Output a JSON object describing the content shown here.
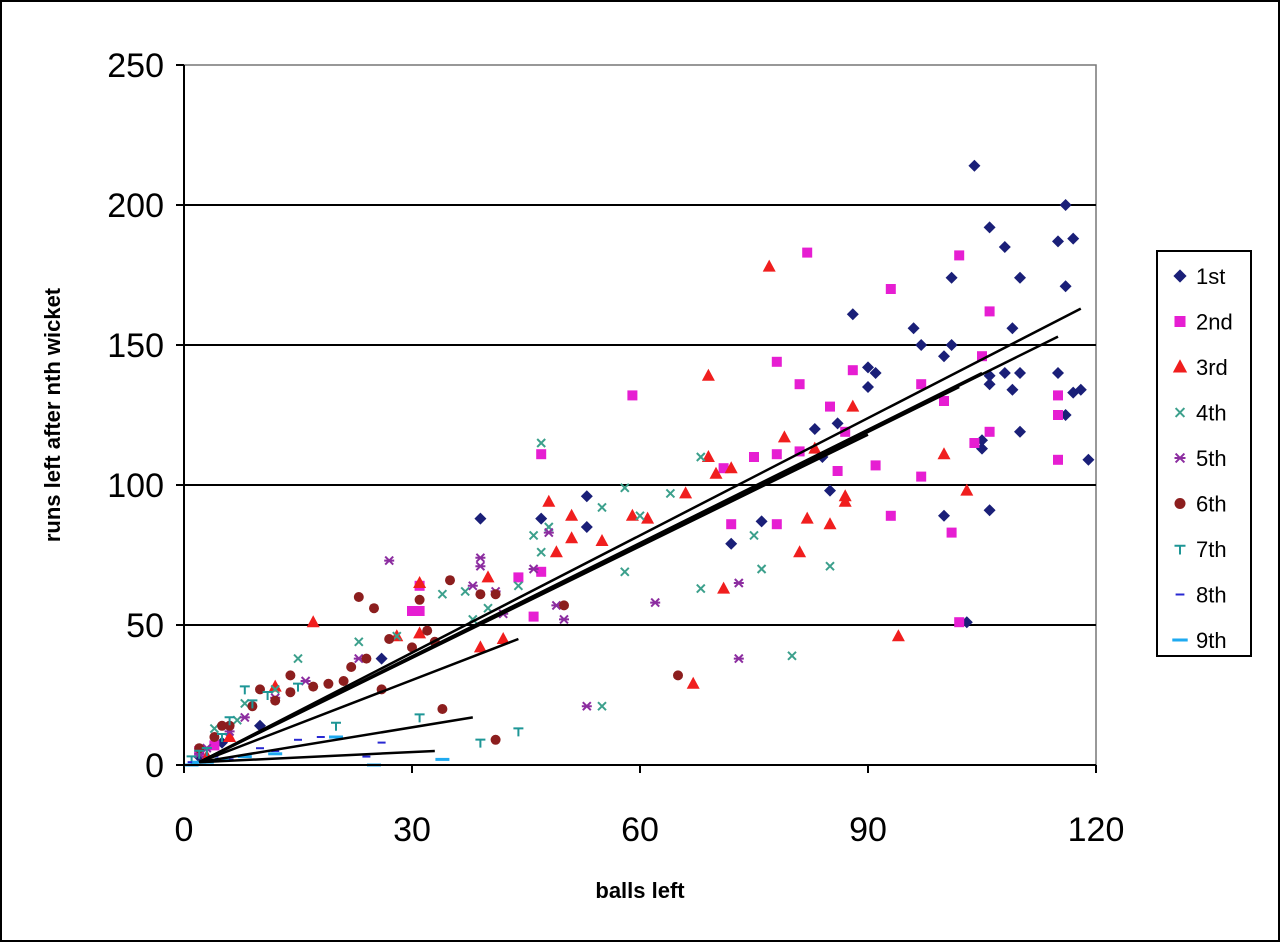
{
  "chart_data": {
    "type": "scatter",
    "title": "",
    "xlabel": "balls left",
    "ylabel": "runs left after nth wicket",
    "xlim": [
      0,
      120
    ],
    "ylim": [
      0,
      250
    ],
    "x_ticks": [
      "0",
      "30",
      "60",
      "90",
      "120"
    ],
    "y_ticks": [
      "0",
      "50",
      "100",
      "150",
      "200",
      "250"
    ],
    "grid": "horizontal major gridlines",
    "legend_position": "right",
    "series": [
      {
        "name": "1st",
        "color": "#1a1f78",
        "marker": "diamond",
        "points": [
          [
            104,
            214
          ],
          [
            116,
            200
          ],
          [
            106,
            192
          ],
          [
            117,
            188
          ],
          [
            115,
            187
          ],
          [
            108,
            185
          ],
          [
            110,
            174
          ],
          [
            101,
            174
          ],
          [
            116,
            171
          ],
          [
            88,
            161
          ],
          [
            96,
            156
          ],
          [
            109,
            156
          ],
          [
            97,
            150
          ],
          [
            101,
            150
          ],
          [
            90,
            142
          ],
          [
            91,
            140
          ],
          [
            100,
            146
          ],
          [
            106,
            139
          ],
          [
            108,
            140
          ],
          [
            110,
            140
          ],
          [
            115,
            140
          ],
          [
            106,
            136
          ],
          [
            109,
            134
          ],
          [
            117,
            133
          ],
          [
            118,
            134
          ],
          [
            90,
            135
          ],
          [
            86,
            122
          ],
          [
            83,
            120
          ],
          [
            84,
            110
          ],
          [
            105,
            113
          ],
          [
            105,
            116
          ],
          [
            110,
            119
          ],
          [
            119,
            109
          ],
          [
            116,
            125
          ],
          [
            100,
            89
          ],
          [
            106,
            91
          ],
          [
            85,
            98
          ],
          [
            76,
            87
          ],
          [
            72,
            79
          ],
          [
            53,
            96
          ],
          [
            47,
            88
          ],
          [
            39,
            88
          ],
          [
            53,
            85
          ],
          [
            103,
            51
          ],
          [
            26,
            38
          ],
          [
            5,
            8
          ],
          [
            10,
            14
          ],
          [
            2,
            3
          ]
        ]
      },
      {
        "name": "2nd",
        "color": "#e61ed2",
        "marker": "square",
        "points": [
          [
            82,
            183
          ],
          [
            102,
            182
          ],
          [
            93,
            170
          ],
          [
            106,
            162
          ],
          [
            78,
            144
          ],
          [
            81,
            136
          ],
          [
            88,
            141
          ],
          [
            97,
            136
          ],
          [
            100,
            130
          ],
          [
            105,
            146
          ],
          [
            115,
            132
          ],
          [
            115,
            125
          ],
          [
            115,
            109
          ],
          [
            85,
            128
          ],
          [
            87,
            119
          ],
          [
            78,
            111
          ],
          [
            75,
            110
          ],
          [
            81,
            112
          ],
          [
            91,
            107
          ],
          [
            86,
            105
          ],
          [
            104,
            115
          ],
          [
            106,
            119
          ],
          [
            97,
            103
          ],
          [
            71,
            106
          ],
          [
            72,
            86
          ],
          [
            78,
            86
          ],
          [
            93,
            89
          ],
          [
            101,
            83
          ],
          [
            102,
            51
          ],
          [
            59,
            132
          ],
          [
            47,
            111
          ],
          [
            44,
            67
          ],
          [
            46,
            53
          ],
          [
            47,
            69
          ],
          [
            31,
            64
          ],
          [
            30,
            55
          ],
          [
            31,
            55
          ],
          [
            2,
            5
          ],
          [
            4,
            7
          ]
        ]
      },
      {
        "name": "3rd",
        "color": "#f01e1e",
        "marker": "triangle",
        "points": [
          [
            77,
            178
          ],
          [
            69,
            139
          ],
          [
            69,
            110
          ],
          [
            72,
            106
          ],
          [
            70,
            104
          ],
          [
            79,
            117
          ],
          [
            83,
            113
          ],
          [
            88,
            128
          ],
          [
            87,
            96
          ],
          [
            87,
            94
          ],
          [
            85,
            86
          ],
          [
            82,
            88
          ],
          [
            81,
            76
          ],
          [
            71,
            63
          ],
          [
            66,
            97
          ],
          [
            61,
            88
          ],
          [
            59,
            89
          ],
          [
            55,
            80
          ],
          [
            51,
            89
          ],
          [
            51,
            81
          ],
          [
            48,
            94
          ],
          [
            49,
            76
          ],
          [
            40,
            67
          ],
          [
            39,
            42
          ],
          [
            42,
            45
          ],
          [
            31,
            65
          ],
          [
            31,
            47
          ],
          [
            28,
            46
          ],
          [
            17,
            51
          ],
          [
            12,
            28
          ],
          [
            100,
            111
          ],
          [
            103,
            98
          ],
          [
            94,
            46
          ],
          [
            67,
            29
          ],
          [
            6,
            10
          ],
          [
            3,
            3
          ]
        ]
      },
      {
        "name": "4th",
        "color": "#3ca08c",
        "marker": "x",
        "points": [
          [
            47,
            115
          ],
          [
            58,
            99
          ],
          [
            68,
            110
          ],
          [
            64,
            97
          ],
          [
            55,
            92
          ],
          [
            60,
            89
          ],
          [
            58,
            69
          ],
          [
            46,
            82
          ],
          [
            44,
            64
          ],
          [
            48,
            85
          ],
          [
            47,
            76
          ],
          [
            40,
            56
          ],
          [
            37,
            62
          ],
          [
            34,
            61
          ],
          [
            38,
            52
          ],
          [
            28,
            46
          ],
          [
            23,
            44
          ],
          [
            15,
            38
          ],
          [
            12,
            27
          ],
          [
            8,
            22
          ],
          [
            7,
            16
          ],
          [
            4,
            13
          ],
          [
            75,
            82
          ],
          [
            76,
            70
          ],
          [
            85,
            71
          ],
          [
            80,
            39
          ],
          [
            55,
            21
          ],
          [
            68,
            63
          ]
        ]
      },
      {
        "name": "5th",
        "color": "#8c2da0",
        "marker": "asterisk",
        "points": [
          [
            27,
            73
          ],
          [
            41,
            62
          ],
          [
            39,
            74
          ],
          [
            39,
            71
          ],
          [
            42,
            54
          ],
          [
            46,
            70
          ],
          [
            49,
            57
          ],
          [
            50,
            52
          ],
          [
            48,
            83
          ],
          [
            38,
            64
          ],
          [
            62,
            58
          ],
          [
            73,
            65
          ],
          [
            73,
            38
          ],
          [
            53,
            21
          ],
          [
            23,
            38
          ],
          [
            16,
            30
          ],
          [
            12,
            24
          ],
          [
            8,
            17
          ],
          [
            6,
            12
          ],
          [
            3,
            6
          ],
          [
            2,
            4
          ]
        ]
      },
      {
        "name": "6th",
        "color": "#8c1e1e",
        "marker": "circle",
        "points": [
          [
            23,
            60
          ],
          [
            25,
            56
          ],
          [
            31,
            59
          ],
          [
            35,
            66
          ],
          [
            39,
            61
          ],
          [
            41,
            61
          ],
          [
            32,
            48
          ],
          [
            30,
            42
          ],
          [
            27,
            45
          ],
          [
            24,
            38
          ],
          [
            22,
            35
          ],
          [
            21,
            30
          ],
          [
            19,
            29
          ],
          [
            17,
            28
          ],
          [
            14,
            32
          ],
          [
            14,
            26
          ],
          [
            12,
            23
          ],
          [
            10,
            27
          ],
          [
            9,
            21
          ],
          [
            6,
            14
          ],
          [
            4,
            10
          ],
          [
            2,
            6
          ],
          [
            5,
            14
          ],
          [
            50,
            57
          ],
          [
            34,
            20
          ],
          [
            41,
            9
          ],
          [
            65,
            32
          ],
          [
            33,
            44
          ],
          [
            26,
            27
          ]
        ]
      },
      {
        "name": "7th",
        "color": "#1e9696",
        "marker": "tick",
        "points": [
          [
            44,
            12
          ],
          [
            39,
            8
          ],
          [
            31,
            17
          ],
          [
            20,
            14
          ],
          [
            15,
            28
          ],
          [
            11,
            25
          ],
          [
            9,
            22
          ],
          [
            8,
            27
          ],
          [
            6,
            16
          ],
          [
            5,
            10
          ],
          [
            3,
            5
          ],
          [
            2,
            4
          ],
          [
            1,
            2
          ]
        ]
      },
      {
        "name": "8th",
        "color": "#2828d2",
        "marker": "dash",
        "points": [
          [
            29,
            0
          ],
          [
            26,
            8
          ],
          [
            24,
            3
          ],
          [
            18,
            10
          ],
          [
            15,
            9
          ],
          [
            12,
            5
          ],
          [
            10,
            6
          ],
          [
            8,
            3
          ],
          [
            6,
            2
          ],
          [
            4,
            3
          ],
          [
            2,
            1
          ],
          [
            1,
            1
          ]
        ]
      },
      {
        "name": "9th",
        "color": "#1eaaf0",
        "marker": "wide-dash",
        "points": [
          [
            34,
            2
          ],
          [
            25,
            0
          ],
          [
            20,
            10
          ],
          [
            12,
            4
          ],
          [
            8,
            3
          ],
          [
            5,
            2
          ],
          [
            3,
            1
          ],
          [
            2,
            1
          ],
          [
            1,
            0
          ]
        ]
      }
    ],
    "trendlines": [
      {
        "series": "1st",
        "x": [
          2,
          118
        ],
        "y": [
          1,
          163
        ]
      },
      {
        "series": "2nd",
        "x": [
          2,
          115
        ],
        "y": [
          1,
          153
        ]
      },
      {
        "series": "3rd",
        "x": [
          2,
          105
        ],
        "y": [
          1,
          140
        ]
      },
      {
        "series": "4th",
        "x": [
          2,
          102
        ],
        "y": [
          1,
          135
        ]
      },
      {
        "series": "5th",
        "x": [
          2,
          90
        ],
        "y": [
          1,
          118
        ]
      },
      {
        "series": "6th",
        "x": [
          2,
          44
        ],
        "y": [
          1,
          45
        ]
      },
      {
        "series": "7th",
        "x": [
          2,
          38
        ],
        "y": [
          1,
          17
        ]
      },
      {
        "series": "8th",
        "x": [
          2,
          33
        ],
        "y": [
          1,
          5
        ]
      }
    ]
  }
}
